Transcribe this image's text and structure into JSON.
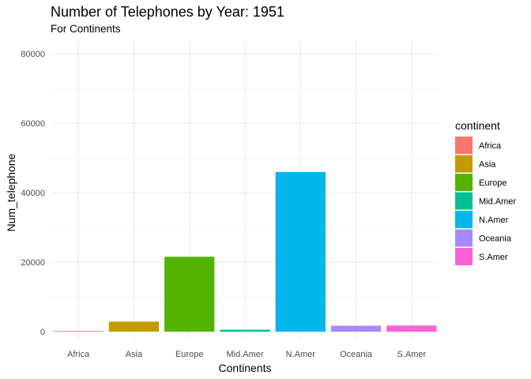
{
  "chart_data": {
    "type": "bar",
    "title": "Number of Telephones by Year: 1951",
    "subtitle": "For Continents",
    "xlabel": "Continents",
    "ylabel": "Num_telephone",
    "categories": [
      "Africa",
      "Asia",
      "Europe",
      "Mid.Amer",
      "N.Amer",
      "Oceania",
      "S.Amer"
    ],
    "values": [
      180,
      2876,
      21560,
      555,
      45940,
      1700,
      1750
    ],
    "colors": [
      "#F8766D",
      "#C49A00",
      "#53B400",
      "#00C094",
      "#00B6EB",
      "#A58AFF",
      "#FB61D7"
    ],
    "ylim": [
      0,
      85000
    ],
    "yticks": [
      0,
      20000,
      40000,
      60000,
      80000
    ],
    "ytick_labels": [
      "0",
      "20000",
      "40000",
      "60000",
      "80000"
    ],
    "grid": true,
    "legend": {
      "title": "continent",
      "placement": "right",
      "entries": [
        "Africa",
        "Asia",
        "Europe",
        "Mid.Amer",
        "N.Amer",
        "Oceania",
        "S.Amer"
      ]
    }
  }
}
